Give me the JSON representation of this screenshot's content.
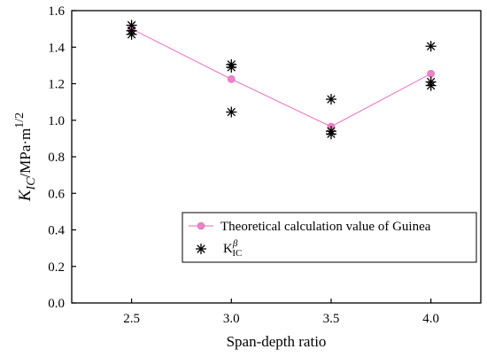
{
  "chart_data": {
    "type": "scatter",
    "title": "",
    "xlabel": "Span-depth ratio",
    "ylabel_main": "K",
    "ylabel_sub": "IC",
    "ylabel_unit": "/MPa·m",
    "ylabel_sup": "1/2",
    "xlim": [
      2.2,
      4.25
    ],
    "ylim": [
      0.0,
      1.6
    ],
    "xticks": [
      "2.5",
      "3.0",
      "3.5",
      "4.0"
    ],
    "yticks": [
      "0.0",
      "0.2",
      "0.4",
      "0.6",
      "0.8",
      "1.0",
      "1.2",
      "1.4",
      "1.6"
    ],
    "legend_position": "bottom-right",
    "series": [
      {
        "name": "Theoretical calculation value of Guinea",
        "style": "line-circle",
        "color": "#ee82c8",
        "x": [
          2.5,
          3.0,
          3.5,
          4.0
        ],
        "y": [
          1.5,
          1.225,
          0.965,
          1.255
        ]
      },
      {
        "name_base": "K",
        "name_sup": "β",
        "name_sub": "IC",
        "style": "asterisk",
        "color": "#000000",
        "x": [
          2.5,
          2.5,
          2.5,
          3.0,
          3.0,
          3.0,
          3.5,
          3.5,
          3.5,
          4.0,
          4.0,
          4.0
        ],
        "y": [
          1.52,
          1.49,
          1.47,
          1.305,
          1.29,
          1.045,
          1.115,
          0.94,
          0.925,
          1.405,
          1.21,
          1.19
        ]
      }
    ]
  }
}
